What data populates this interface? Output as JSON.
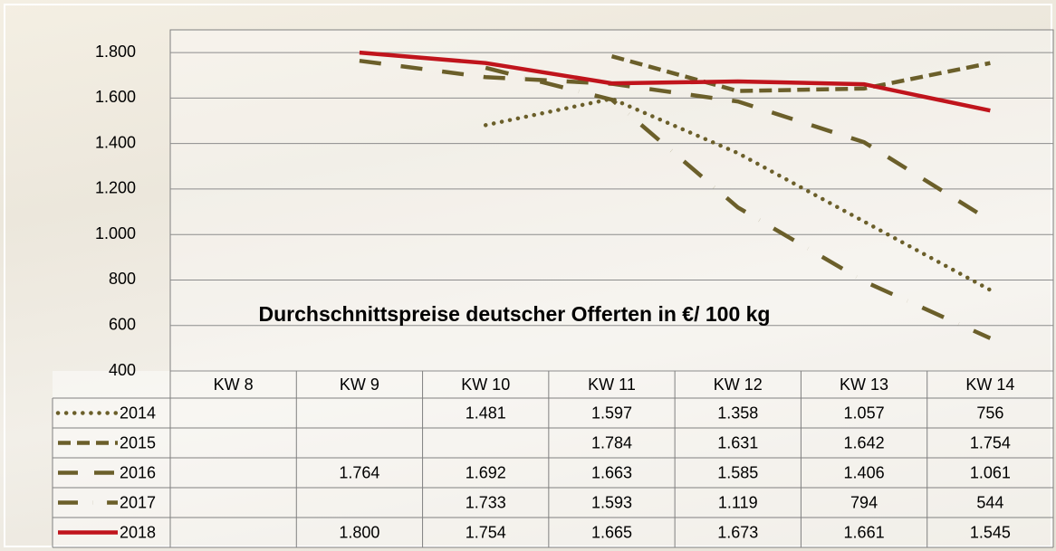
{
  "chart_data": {
    "type": "line",
    "title": "Durchschnittspreise deutscher Offerten in €/ 100 kg",
    "categories": [
      "KW 8",
      "KW 9",
      "KW 10",
      "KW 11",
      "KW 12",
      "KW 13",
      "KW 14"
    ],
    "series": [
      {
        "name": "2014",
        "color": "#6b5f2a",
        "dash": "dotted",
        "values": [
          null,
          null,
          1481,
          1597,
          1358,
          1057,
          756
        ],
        "value_labels": [
          null,
          null,
          "1.481",
          "1.597",
          "1.358",
          "1.057",
          "756"
        ]
      },
      {
        "name": "2015",
        "color": "#6b5f2a",
        "dash": "dashed",
        "values": [
          null,
          null,
          null,
          1784,
          1631,
          1642,
          1754
        ],
        "value_labels": [
          null,
          null,
          null,
          "1.784",
          "1.631",
          "1.642",
          "1.754"
        ]
      },
      {
        "name": "2016",
        "color": "#6b5f2a",
        "dash": "longdash",
        "values": [
          null,
          1764,
          1692,
          1663,
          1585,
          1406,
          1061
        ],
        "value_labels": [
          null,
          "1.764",
          "1.692",
          "1.663",
          "1.585",
          "1.406",
          "1.061"
        ]
      },
      {
        "name": "2017",
        "color": "#6b5f2a",
        "dash": "dashdot",
        "values": [
          null,
          null,
          1733,
          1593,
          1119,
          794,
          544
        ],
        "value_labels": [
          null,
          null,
          "1.733",
          "1.593",
          "1.119",
          "794",
          "544"
        ]
      },
      {
        "name": "2018",
        "color": "#c0141c",
        "dash": "solid",
        "values": [
          null,
          1800,
          1754,
          1665,
          1673,
          1661,
          1545
        ],
        "value_labels": [
          null,
          "1.800",
          "1.754",
          "1.665",
          "1.673",
          "1.661",
          "1.545"
        ]
      }
    ],
    "ylim": [
      400,
      1900
    ],
    "yticks": [
      {
        "value": 400,
        "label": "400"
      },
      {
        "value": 600,
        "label": "600"
      },
      {
        "value": 800,
        "label": "800"
      },
      {
        "value": 1000,
        "label": "1.000"
      },
      {
        "value": 1200,
        "label": "1.200"
      },
      {
        "value": 1400,
        "label": "1.400"
      },
      {
        "value": 1600,
        "label": "1.600"
      },
      {
        "value": 1800,
        "label": "1.800"
      }
    ],
    "grid": true
  }
}
